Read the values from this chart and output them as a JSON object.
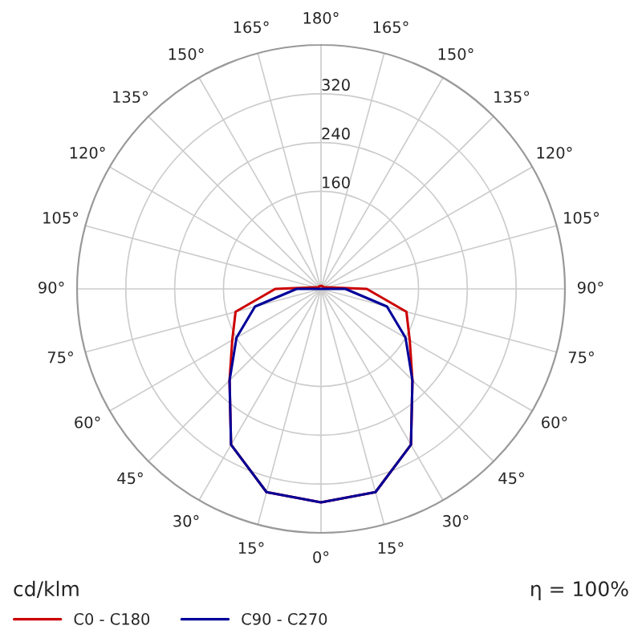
{
  "chart_data": {
    "type": "radar",
    "categories": [
      "180°",
      "165°",
      "150°",
      "135°",
      "120°",
      "105°",
      "90°",
      "75°",
      "60°",
      "45°",
      "30°",
      "15°",
      "0°",
      "15°",
      "30°",
      "45°",
      "60°",
      "75°",
      "90°",
      "105°",
      "120°",
      "135°",
      "150°",
      "165°"
    ],
    "series": [
      {
        "name": "C0 - C180",
        "color": "#cc0000",
        "values": [
          5,
          5,
          5,
          5,
          5,
          10,
          75,
          145,
          168,
          212,
          295,
          345,
          350,
          345,
          295,
          212,
          168,
          145,
          75,
          10,
          5,
          5,
          5,
          5
        ]
      },
      {
        "name": "C90 - C270",
        "color": "#000099",
        "values": [
          0,
          0,
          0,
          0,
          0,
          0,
          40,
          112,
          160,
          212,
          295,
          345,
          350,
          345,
          295,
          212,
          160,
          112,
          40,
          0,
          0,
          0,
          0,
          0
        ]
      }
    ],
    "ylim": [
      0,
      400
    ],
    "yticks": [
      160,
      240,
      320
    ],
    "grid": true,
    "legend": "bottom left",
    "marker": "none",
    "line_style": "solid",
    "annotations": [
      "cd/klm",
      "η = 100%"
    ]
  }
}
